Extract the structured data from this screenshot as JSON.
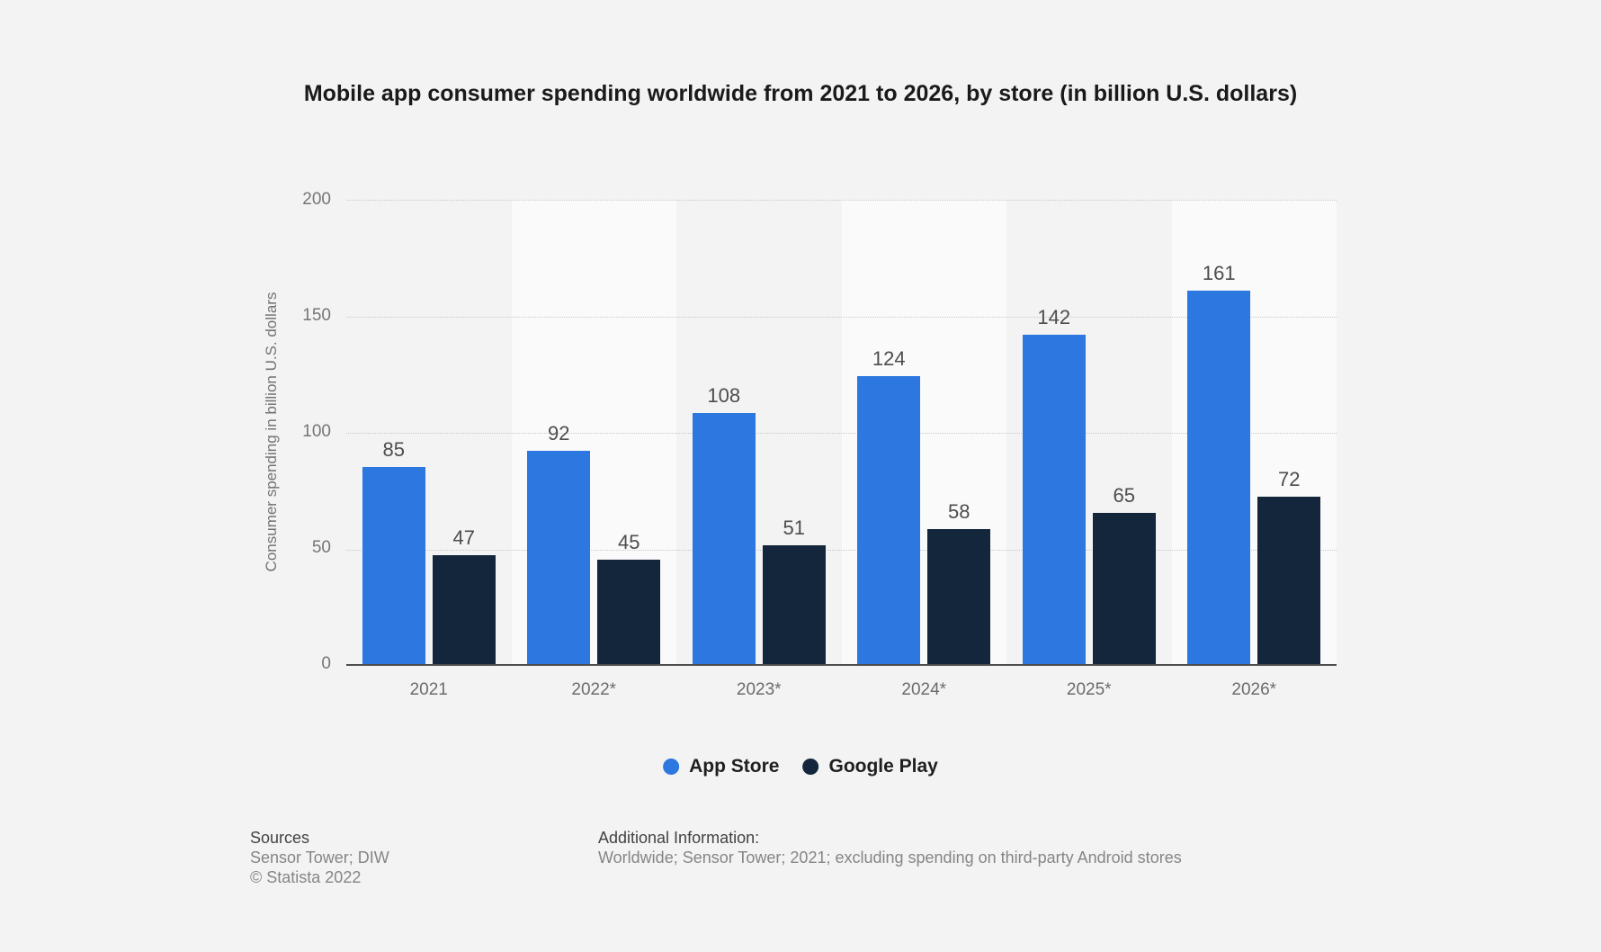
{
  "title": "Mobile app consumer spending worldwide from 2021 to 2026, by store (in billion U.S. dollars)",
  "chart_data": {
    "type": "bar",
    "title": "Mobile app consumer spending worldwide from 2021 to 2026, by store (in billion U.S. dollars)",
    "categories": [
      "2021",
      "2022*",
      "2023*",
      "2024*",
      "2025*",
      "2026*"
    ],
    "series": [
      {
        "name": "App Store",
        "color": "#2d77e0",
        "values": [
          85,
          92,
          108,
          124,
          142,
          161
        ]
      },
      {
        "name": "Google Play",
        "color": "#14263c",
        "values": [
          47,
          45,
          51,
          58,
          65,
          72
        ]
      }
    ],
    "xlabel": "",
    "ylabel": "Consumer spending in billion U.S. dollars",
    "yticks": [
      0,
      50,
      100,
      150,
      200
    ],
    "ylim": [
      0,
      200
    ],
    "grid": "horizontal-dotted",
    "band_alt_color": "#fafafa",
    "legend_position": "bottom"
  },
  "footer": {
    "sources_label": "Sources",
    "sources_line": "Sensor Tower; DIW",
    "copyright_line": "© Statista 2022",
    "additional_label": "Additional Information:",
    "additional_line": "Worldwide; Sensor Tower; 2021; excluding spending on third-party Android stores"
  }
}
